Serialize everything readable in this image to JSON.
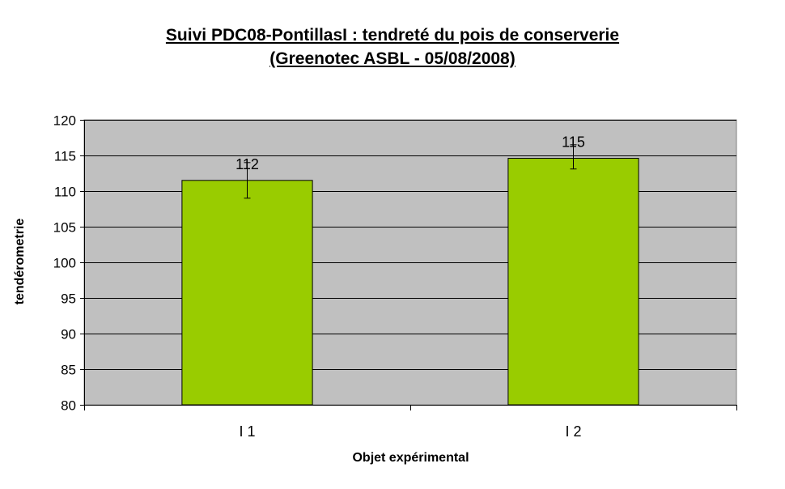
{
  "chart_data": {
    "type": "bar",
    "title_line1": "Suivi PDC08-PontillasI : tendreté du pois de conserverie",
    "title_line2": "(Greenotec ASBL - 05/08/2008)",
    "xlabel": "Objet expérimental",
    "ylabel": "tendérometrie",
    "categories": [
      "I 1",
      "I 2"
    ],
    "values": [
      111.5,
      114.6
    ],
    "data_labels": [
      "112",
      "115"
    ],
    "error_bars": [
      {
        "low": 109.0,
        "high": 114.0
      },
      {
        "low": 113.1,
        "high": 116.5
      }
    ],
    "ylim": [
      80,
      120
    ],
    "yticks": [
      80,
      85,
      90,
      95,
      100,
      105,
      110,
      115,
      120
    ],
    "grid": true,
    "legend": "none",
    "colors": {
      "bar_fill": "#99cc00",
      "plot_background": "#c0c0c0",
      "gridline": "#000000"
    }
  }
}
